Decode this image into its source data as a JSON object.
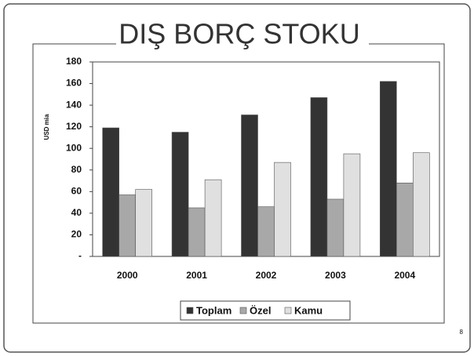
{
  "title": "DIŞ BORÇ STOKU",
  "page_number": "8",
  "chart_data": {
    "type": "bar",
    "y_label": "USD mia",
    "categories": [
      "2000",
      "2001",
      "2002",
      "2003",
      "2004"
    ],
    "series": [
      {
        "name": "Toplam",
        "color": "#333333",
        "values": [
          119,
          115,
          131,
          147,
          162
        ]
      },
      {
        "name": "Özel",
        "color": "#a8a8a8",
        "values": [
          57,
          45,
          46,
          53,
          68
        ]
      },
      {
        "name": "Kamu",
        "color": "#e0e0e0",
        "values": [
          62,
          71,
          87,
          95,
          96
        ]
      }
    ],
    "ylim": [
      0,
      180
    ],
    "yticks": [
      {
        "value": 0,
        "label": "-"
      },
      20,
      40,
      60,
      80,
      100,
      120,
      140,
      160,
      180
    ],
    "grid": false,
    "legend": "bottom"
  }
}
